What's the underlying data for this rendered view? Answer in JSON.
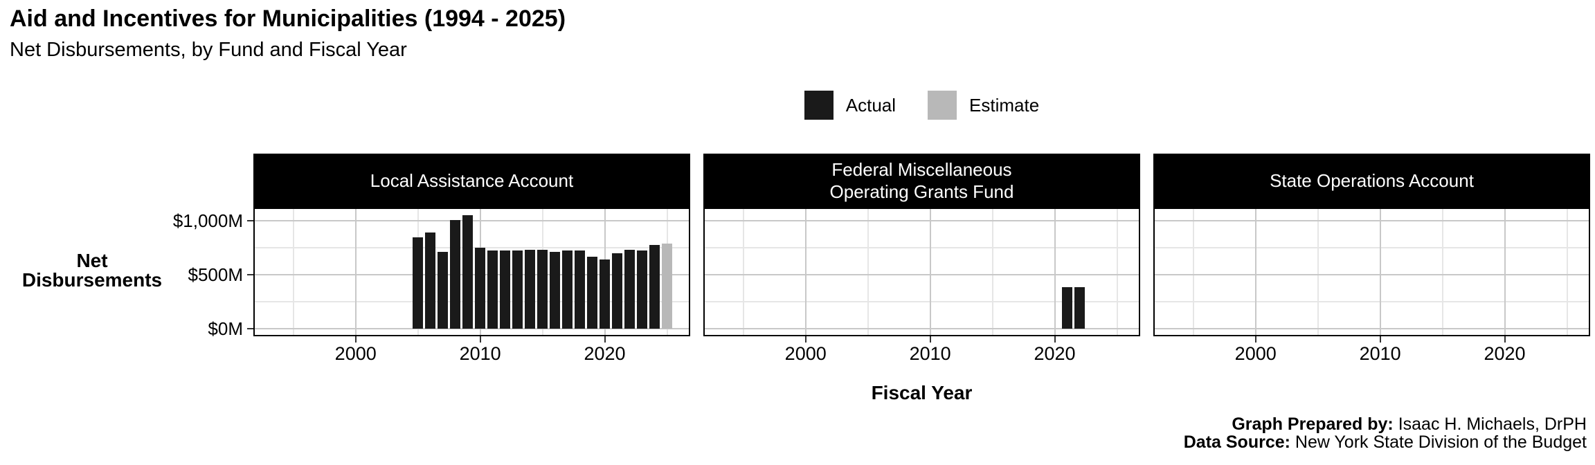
{
  "title": "Aid and Incentives for Municipalities (1994 - 2025)",
  "subtitle": "Net Disbursements, by Fund and Fiscal Year",
  "legend": {
    "items": [
      {
        "label": "Actual",
        "color": "#1a1a1a"
      },
      {
        "label": "Estimate",
        "color": "#b8b8b8"
      }
    ]
  },
  "y_axis": {
    "title_line1": "Net",
    "title_line2": "Disbursements"
  },
  "x_axis": {
    "title": "Fiscal Year"
  },
  "caption": {
    "prepared_label": "Graph Prepared by:",
    "prepared_value": " Isaac H. Michaels, DrPH",
    "source_label": "Data Source:",
    "source_value": " New York State Division of the Budget"
  },
  "colors": {
    "strip_bg": "#000000",
    "strip_text": "#ffffff",
    "grid_major": "#c8c8c8",
    "grid_minor": "#e6e6e6",
    "panel_border": "#000000",
    "tick_color": "#333333"
  },
  "chart_data": {
    "type": "bar",
    "title": "Aid and Incentives for Municipalities (1994 - 2025)",
    "subtitle": "Net Disbursements, by Fund and Fiscal Year",
    "xlabel": "Fiscal Year",
    "ylabel": "Net Disbursements",
    "units": "$M",
    "legend_position": "top",
    "grid": true,
    "xlim": [
      1991.9,
      2026.75
    ],
    "ylim": [
      -56,
      1110
    ],
    "x_ticks": [
      2000,
      2010,
      2020
    ],
    "x_minor": [
      1995,
      2005,
      2015,
      2025
    ],
    "y_ticks": [
      {
        "value": 0,
        "label": "$0M"
      },
      {
        "value": 500,
        "label": "$500M"
      },
      {
        "value": 1000,
        "label": "$1,000M"
      }
    ],
    "y_minor": [
      250,
      750
    ],
    "series_colors": {
      "Actual": "#1a1a1a",
      "Estimate": "#b8b8b8"
    },
    "facets": [
      {
        "name": "Local Assistance Account",
        "strip_lines": [
          "Local Assistance Account"
        ],
        "bars": [
          {
            "year": 2005,
            "value": 845,
            "series": "Actual"
          },
          {
            "year": 2006,
            "value": 890,
            "series": "Actual"
          },
          {
            "year": 2007,
            "value": 710,
            "series": "Actual"
          },
          {
            "year": 2008,
            "value": 1010,
            "series": "Actual"
          },
          {
            "year": 2009,
            "value": 1050,
            "series": "Actual"
          },
          {
            "year": 2010,
            "value": 750,
            "series": "Actual"
          },
          {
            "year": 2011,
            "value": 725,
            "series": "Actual"
          },
          {
            "year": 2012,
            "value": 725,
            "series": "Actual"
          },
          {
            "year": 2013,
            "value": 725,
            "series": "Actual"
          },
          {
            "year": 2014,
            "value": 730,
            "series": "Actual"
          },
          {
            "year": 2015,
            "value": 730,
            "series": "Actual"
          },
          {
            "year": 2016,
            "value": 715,
            "series": "Actual"
          },
          {
            "year": 2017,
            "value": 725,
            "series": "Actual"
          },
          {
            "year": 2018,
            "value": 725,
            "series": "Actual"
          },
          {
            "year": 2019,
            "value": 670,
            "series": "Actual"
          },
          {
            "year": 2020,
            "value": 640,
            "series": "Actual"
          },
          {
            "year": 2021,
            "value": 700,
            "series": "Actual"
          },
          {
            "year": 2022,
            "value": 730,
            "series": "Actual"
          },
          {
            "year": 2023,
            "value": 725,
            "series": "Actual"
          },
          {
            "year": 2024,
            "value": 780,
            "series": "Actual"
          },
          {
            "year": 2025,
            "value": 790,
            "series": "Estimate"
          }
        ]
      },
      {
        "name": "Federal Miscellaneous Operating Grants Fund",
        "strip_lines": [
          "Federal Miscellaneous",
          "Operating Grants Fund"
        ],
        "bars": [
          {
            "year": 2021,
            "value": 385,
            "series": "Actual"
          },
          {
            "year": 2022,
            "value": 385,
            "series": "Actual"
          }
        ]
      },
      {
        "name": "State Operations Account",
        "strip_lines": [
          "State Operations Account"
        ],
        "bars": []
      }
    ]
  }
}
